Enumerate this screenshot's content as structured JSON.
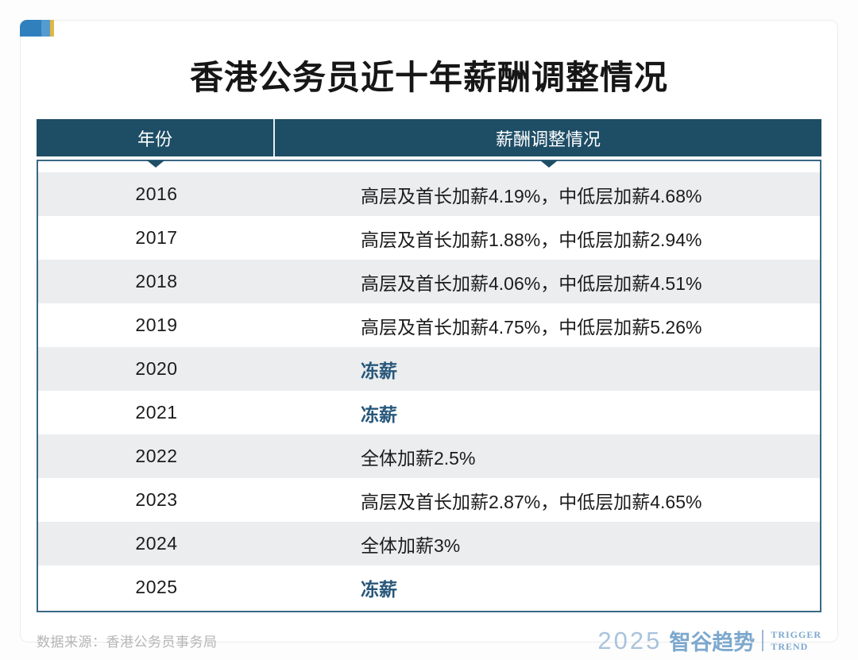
{
  "page": {
    "title": "香港公务员近十年薪酬调整情况"
  },
  "table": {
    "columns": [
      {
        "label": "年份"
      },
      {
        "label": "薪酬调整情况"
      }
    ],
    "rows": [
      {
        "year": "2016",
        "adjustment": "高层及首长加薪4.19%，中低层加薪4.68%",
        "highlight": false
      },
      {
        "year": "2017",
        "adjustment": "高层及首长加薪1.88%，中低层加薪2.94%",
        "highlight": false
      },
      {
        "year": "2018",
        "adjustment": "高层及首长加薪4.06%，中低层加薪4.51%",
        "highlight": false
      },
      {
        "year": "2019",
        "adjustment": "高层及首长加薪4.75%，中低层加薪5.26%",
        "highlight": false
      },
      {
        "year": "2020",
        "adjustment": "冻薪",
        "highlight": true
      },
      {
        "year": "2021",
        "adjustment": "冻薪",
        "highlight": true
      },
      {
        "year": "2022",
        "adjustment": "全体加薪2.5%",
        "highlight": false
      },
      {
        "year": "2023",
        "adjustment": "高层及首长加薪2.87%，中低层加薪4.65%",
        "highlight": false
      },
      {
        "year": "2024",
        "adjustment": "全体加薪3%",
        "highlight": false
      },
      {
        "year": "2025",
        "adjustment": "冻薪",
        "highlight": true
      }
    ]
  },
  "footer": {
    "source": "数据来源：香港公务员事务局",
    "logo": {
      "year": "2025",
      "brand": "智谷趋势",
      "tagline_line1": "TRIGGER",
      "tagline_line2": "TREND"
    }
  },
  "colors": {
    "header_navy": "#1e4d66",
    "body_border": "#3a6885",
    "stripe_gray": "#ebedee",
    "freeze_blue": "#27577b",
    "deco_blue_dark": "#2f80bd",
    "deco_blue_light": "#549bd0",
    "deco_gold": "#dfb945",
    "logo_blue": "#7da8ce",
    "source_gray": "#b5b5b6"
  },
  "chart_data": {
    "type": "table",
    "title": "香港公务员近十年薪酬调整情况",
    "columns": [
      "年份",
      "薪酬调整情况"
    ],
    "rows": [
      [
        "2016",
        "高层及首长加薪4.19%，中低层加薪4.68%"
      ],
      [
        "2017",
        "高层及首长加薪1.88%，中低层加薪2.94%"
      ],
      [
        "2018",
        "高层及首长加薪4.06%，中低层加薪4.51%"
      ],
      [
        "2019",
        "高层及首长加薪4.75%，中低层加薪5.26%"
      ],
      [
        "2020",
        "冻薪"
      ],
      [
        "2021",
        "冻薪"
      ],
      [
        "2022",
        "全体加薪2.5%"
      ],
      [
        "2023",
        "高层及首长加薪2.87%，中低层加薪4.65%"
      ],
      [
        "2024",
        "全体加薪3%"
      ],
      [
        "2025",
        "冻薪"
      ]
    ],
    "parsed_series": {
      "years": [
        2016,
        2017,
        2018,
        2019,
        2020,
        2021,
        2022,
        2023,
        2024,
        2025
      ],
      "senior_and_directorate_raise_pct": [
        4.19,
        1.88,
        4.06,
        4.75,
        0,
        0,
        2.5,
        2.87,
        3,
        0
      ],
      "mid_low_tier_raise_pct": [
        4.68,
        2.94,
        4.51,
        5.26,
        0,
        0,
        2.5,
        4.65,
        3,
        0
      ],
      "pay_freeze_years": [
        2020,
        2021,
        2025
      ]
    },
    "source": "数据来源：香港公务员事务局"
  }
}
